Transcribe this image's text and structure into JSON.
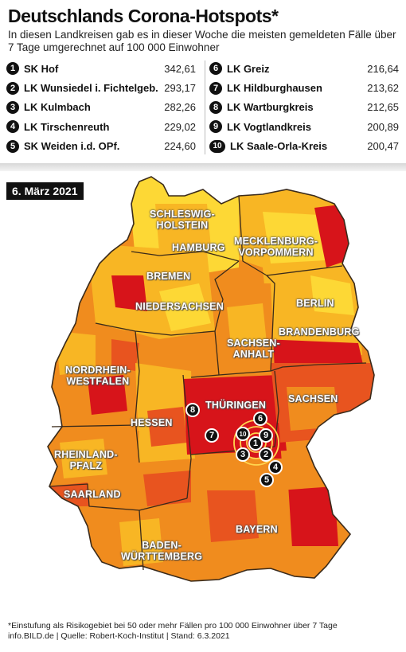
{
  "title": "Deutschlands Corona-Hotspots*",
  "subtitle": "In diesen Landkreisen gab es in dieser Woche die meisten gemeldeten Fälle über 7 Tage umgerechnet auf 100 000 Einwohner",
  "ranking_left": [
    {
      "rank": "1",
      "name": "SK Hof",
      "value": "342,61"
    },
    {
      "rank": "2",
      "name": "LK Wunsiedel i. Fichtelgeb.",
      "value": "293,17"
    },
    {
      "rank": "3",
      "name": "LK Kulmbach",
      "value": "282,26"
    },
    {
      "rank": "4",
      "name": "LK Tirschenreuth",
      "value": "229,02"
    },
    {
      "rank": "5",
      "name": "SK Weiden i.d. OPf.",
      "value": "224,60"
    }
  ],
  "ranking_right": [
    {
      "rank": "6",
      "name": "LK Greiz",
      "value": "216,64"
    },
    {
      "rank": "7",
      "name": "LK Hildburghausen",
      "value": "213,62"
    },
    {
      "rank": "8",
      "name": "LK Wartburgkreis",
      "value": "212,65"
    },
    {
      "rank": "9",
      "name": "LK Vogtlandkreis",
      "value": "200,89"
    },
    {
      "rank": "10",
      "name": "LK Saale-Orla-Kreis",
      "value": "200,47"
    }
  ],
  "map": {
    "date": "6. März 2021",
    "states": {
      "sh_line1": "SCHLESWIG-",
      "sh_line2": "HOLSTEIN",
      "hamburg": "HAMBURG",
      "mv_line1": "MECKLENBURG-",
      "mv_line2": "VORPOMMERN",
      "bremen": "BREMEN",
      "niedersachsen": "NIEDERSACHSEN",
      "berlin": "BERLIN",
      "brandenburg": "BRANDENBURG",
      "st_line1": "SACHSEN-",
      "st_line2": "ANHALT",
      "nrw_line1": "NORDRHEIN-",
      "nrw_line2": "WESTFALEN",
      "sachsen": "SACHSEN",
      "thueringen": "THÜRINGEN",
      "hessen": "HESSEN",
      "rp_line1": "RHEINLAND-",
      "rp_line2": "PFALZ",
      "saarland": "SAARLAND",
      "bayern": "BAYERN",
      "bw_line1": "BADEN-",
      "bw_line2": "WÜRTTEMBERG"
    },
    "markers": [
      "1",
      "2",
      "3",
      "4",
      "5",
      "6",
      "7",
      "8",
      "9",
      "10"
    ],
    "colors": {
      "highest": "#d7141a",
      "high": "#e8541f",
      "medium": "#f08c1e",
      "low": "#f8b624",
      "lowest": "#fdd835"
    }
  },
  "footnote_line1": "*Einstufung als Risikogebiet bei 50 oder mehr Fällen pro 100 000 Einwohner über 7 Tage",
  "footnote_line2": "info.BILD.de | Quelle: Robert-Koch-Institut | Stand: 6.3.2021"
}
